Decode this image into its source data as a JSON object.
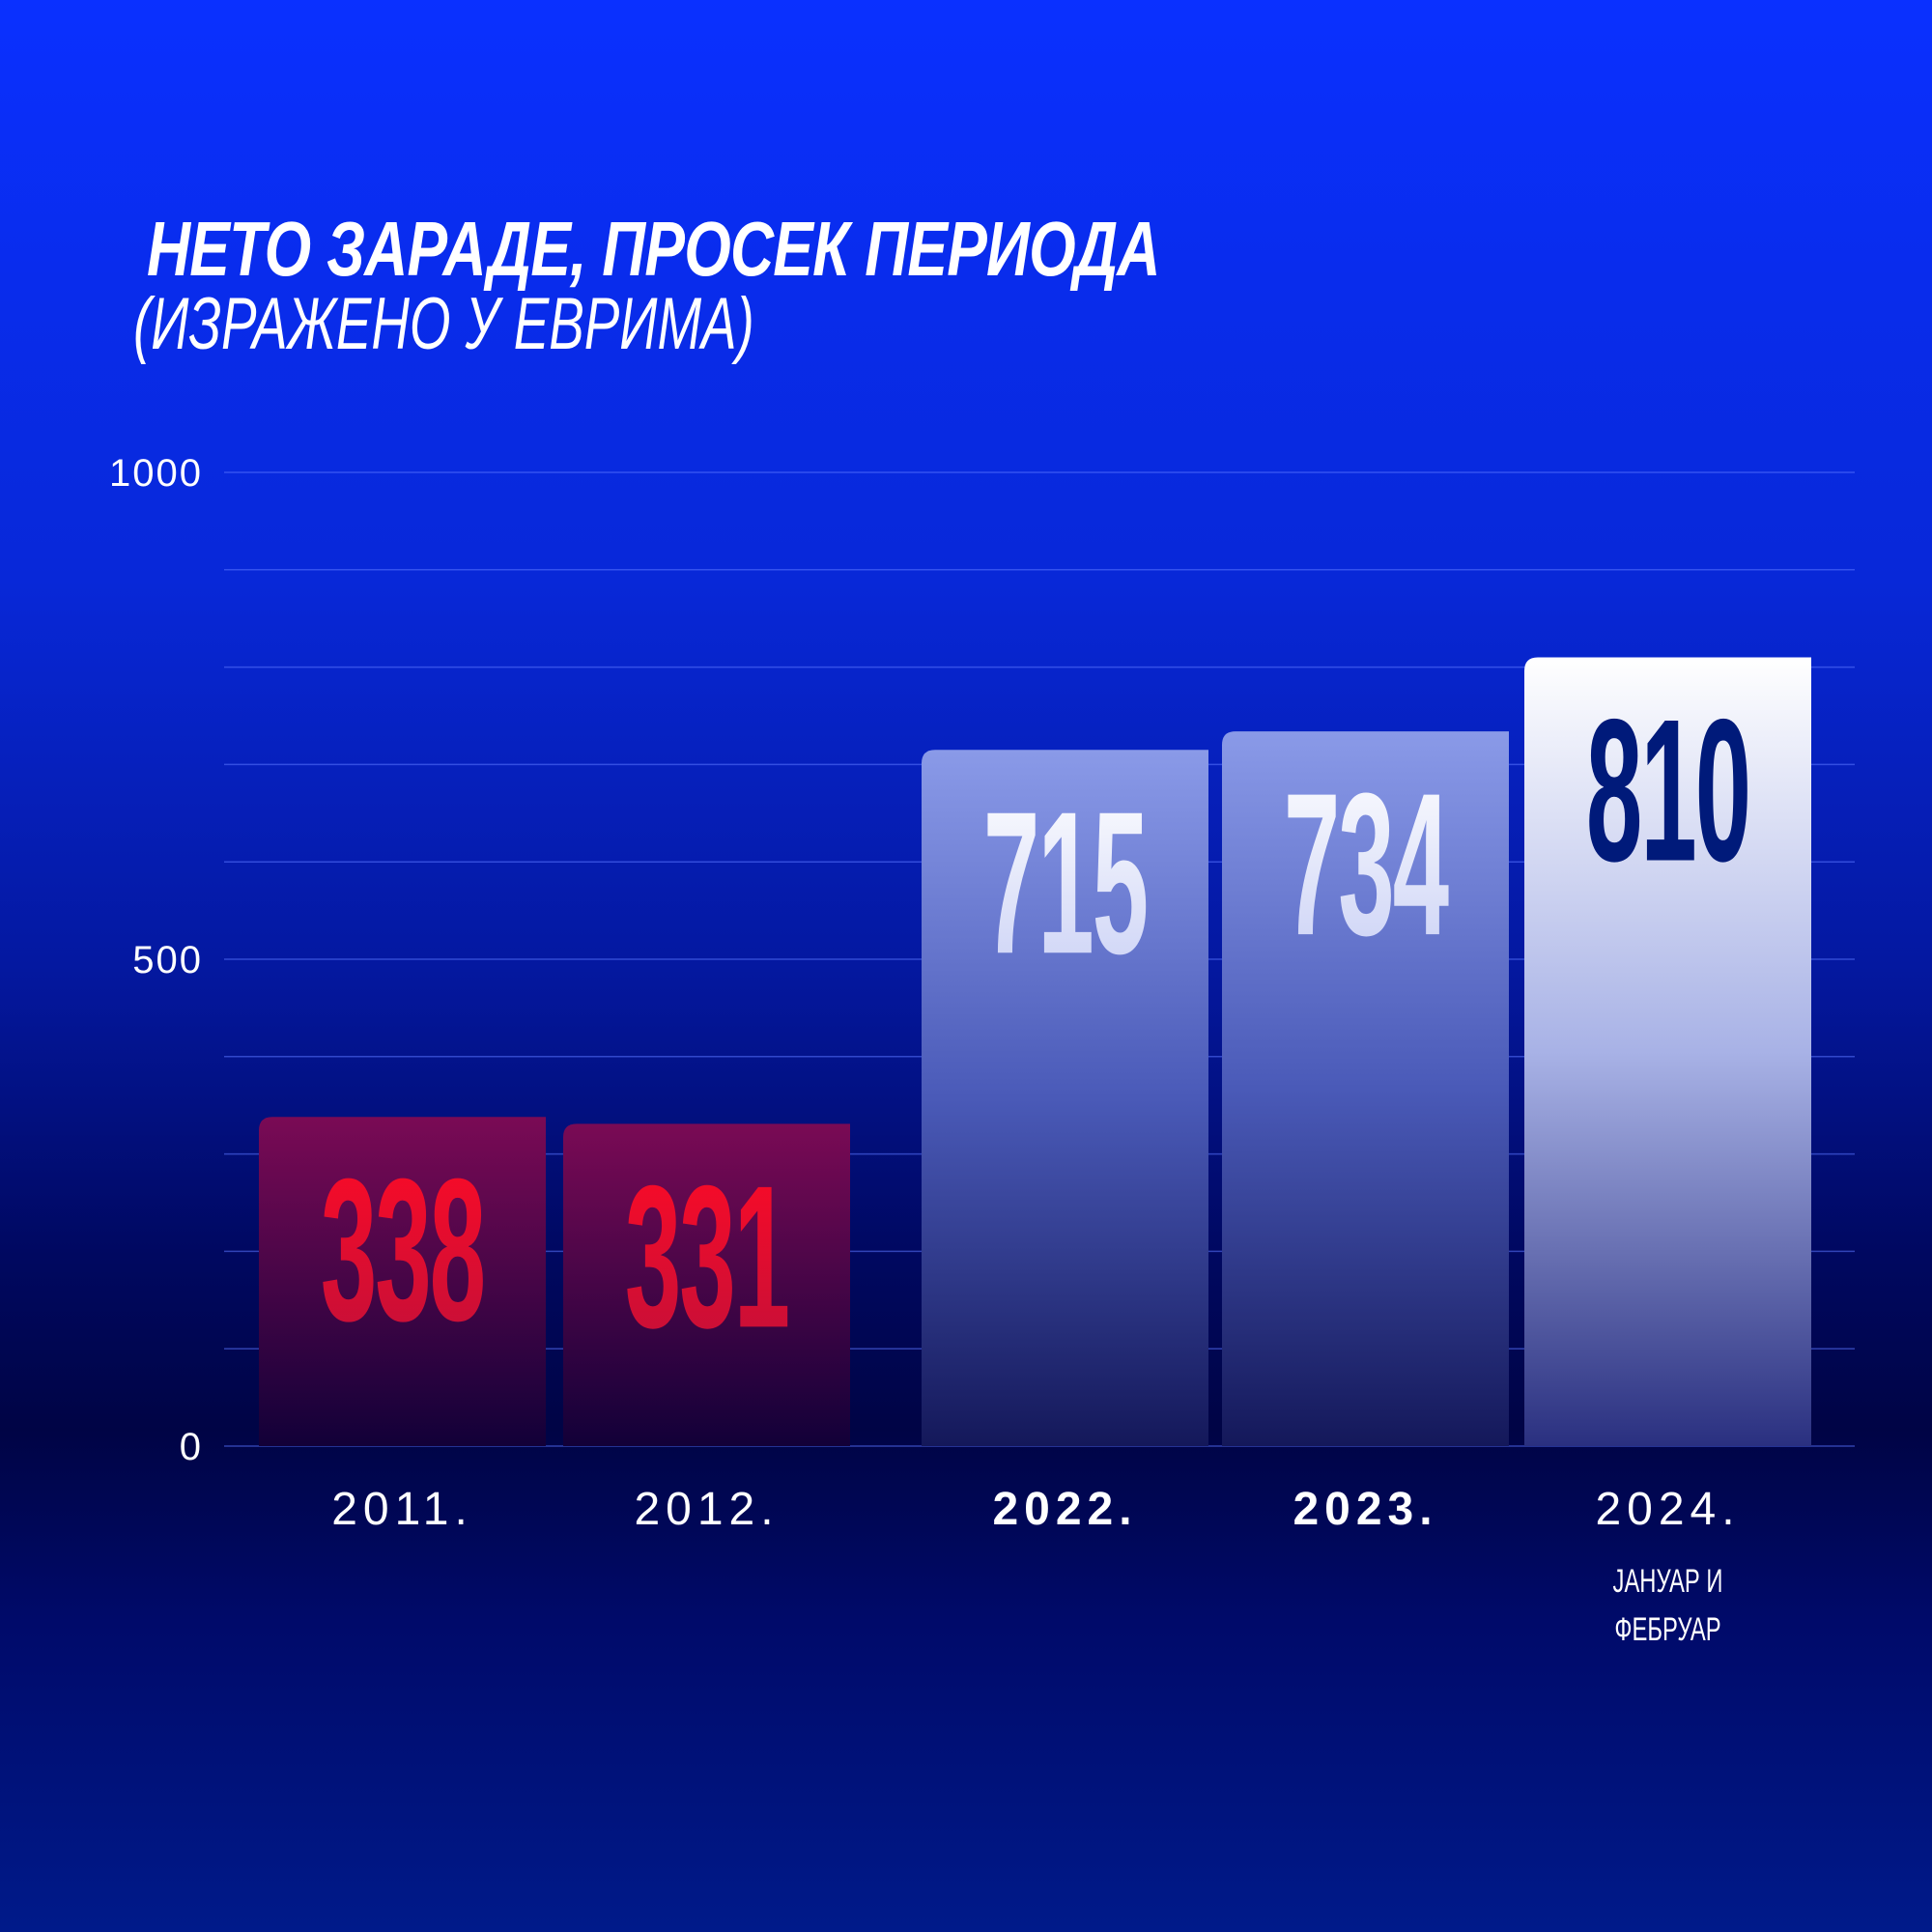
{
  "title": "НЕТО ЗАРАДЕ, ПРОСЕК ПЕРИОДА",
  "subtitle": "(ИЗРАЖЕНО У ЕВРИМА)",
  "chart_data": {
    "type": "bar",
    "title": "НЕТО ЗАРАДЕ, ПРОСЕК ПЕРИОДА",
    "subtitle": "(ИЗРАЖЕНО У ЕВРИМА)",
    "categories": [
      "2011.",
      "2012.",
      "2022.",
      "2023.",
      "2024."
    ],
    "category_notes": [
      "",
      "",
      "",
      "",
      "ЈАНУАР И ФЕБРУАР"
    ],
    "bold_categories": [
      false,
      false,
      true,
      true,
      false
    ],
    "values": [
      338,
      331,
      715,
      734,
      810
    ],
    "data_labels": [
      "338",
      "331",
      "715",
      "734",
      "810"
    ],
    "ylim": [
      0,
      1000
    ],
    "yticks": [
      0,
      500,
      1000
    ],
    "ytick_labels": [
      "0",
      "500",
      "1000"
    ],
    "grid_step": 100,
    "grid": true,
    "colors": {
      "old_years_bar": "#7a0a55",
      "old_years_label": "#e8102a",
      "recent_bar": "#8a9ae8",
      "highlight_bar": "#ffffff",
      "highlight_label": "#001a7a"
    }
  }
}
